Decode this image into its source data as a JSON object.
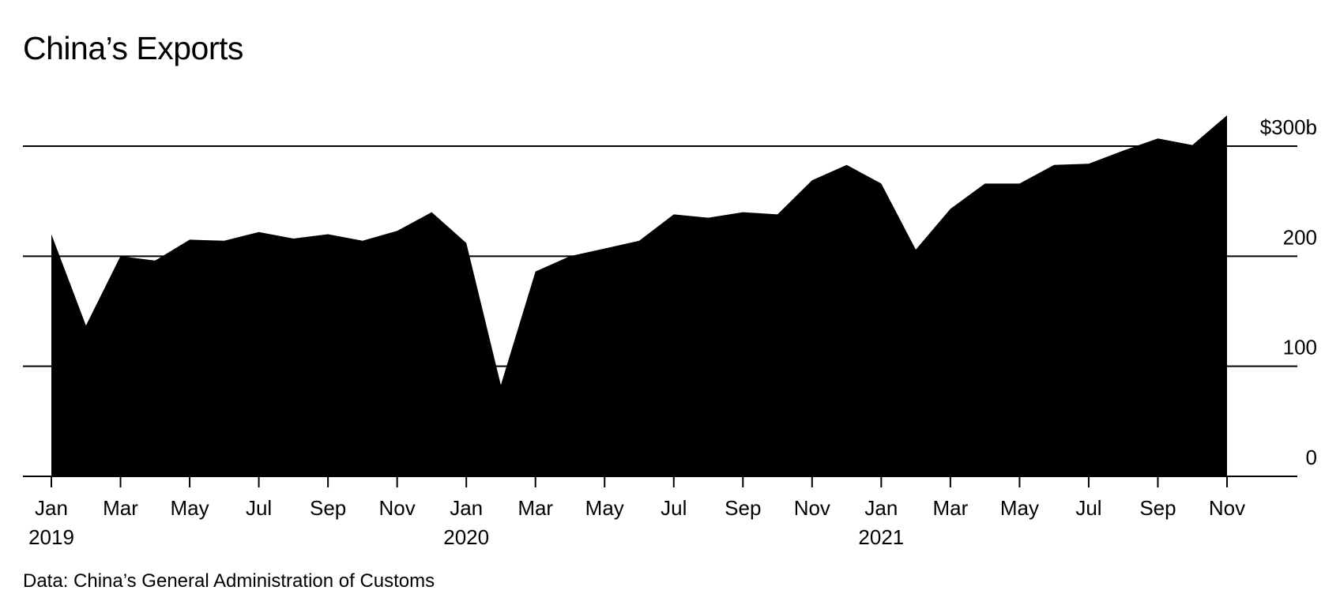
{
  "chart_data": {
    "type": "area",
    "title": "China’s Exports",
    "source": "Data: China’s General Administration of Customs",
    "xlabel": "",
    "ylabel": "",
    "ylim": [
      0,
      300
    ],
    "y_ticks": [
      {
        "value": 0,
        "label": "0"
      },
      {
        "value": 100,
        "label": "100"
      },
      {
        "value": 200,
        "label": "200"
      },
      {
        "value": 300,
        "label": "$300b"
      }
    ],
    "x_ticks": [
      {
        "index": 0,
        "label": "Jan",
        "year": "2019"
      },
      {
        "index": 2,
        "label": "Mar"
      },
      {
        "index": 4,
        "label": "May"
      },
      {
        "index": 6,
        "label": "Jul"
      },
      {
        "index": 8,
        "label": "Sep"
      },
      {
        "index": 10,
        "label": "Nov"
      },
      {
        "index": 12,
        "label": "Jan",
        "year": "2020"
      },
      {
        "index": 14,
        "label": "Mar"
      },
      {
        "index": 16,
        "label": "May"
      },
      {
        "index": 18,
        "label": "Jul"
      },
      {
        "index": 20,
        "label": "Sep"
      },
      {
        "index": 22,
        "label": "Nov"
      },
      {
        "index": 24,
        "label": "Jan",
        "year": "2021"
      },
      {
        "index": 26,
        "label": "Mar"
      },
      {
        "index": 28,
        "label": "May"
      },
      {
        "index": 30,
        "label": "Jul"
      },
      {
        "index": 32,
        "label": "Sep"
      },
      {
        "index": 34,
        "label": "Nov"
      }
    ],
    "x": [
      "2019-01",
      "2019-02",
      "2019-03",
      "2019-04",
      "2019-05",
      "2019-06",
      "2019-07",
      "2019-08",
      "2019-09",
      "2019-10",
      "2019-11",
      "2019-12",
      "2020-01",
      "2020-02",
      "2020-03",
      "2020-04",
      "2020-05",
      "2020-06",
      "2020-07",
      "2020-08",
      "2020-09",
      "2020-10",
      "2020-11",
      "2020-12",
      "2021-01",
      "2021-02",
      "2021-03",
      "2021-04",
      "2021-05",
      "2021-06",
      "2021-07",
      "2021-08",
      "2021-09",
      "2021-10",
      "2021-11"
    ],
    "series": [
      {
        "name": "Exports",
        "color": "#000000",
        "values": [
          220,
          137,
          200,
          196,
          215,
          214,
          222,
          216,
          220,
          214,
          223,
          240,
          212,
          83,
          186,
          200,
          207,
          214,
          238,
          235,
          240,
          238,
          269,
          283,
          266,
          206,
          243,
          266,
          266,
          283,
          284,
          296,
          307,
          301,
          328
        ]
      }
    ],
    "grid": true
  }
}
